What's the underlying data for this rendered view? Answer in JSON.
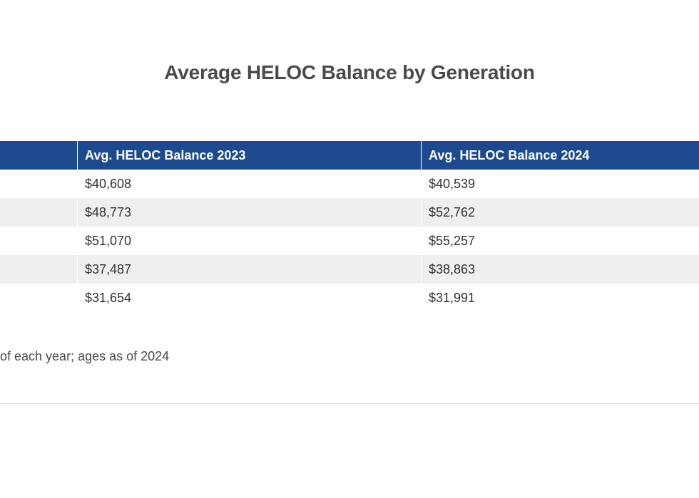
{
  "chart_data": {
    "type": "table",
    "title": "Average HELOC Balance by Generation",
    "columns": [
      "",
      "Avg. HELOC Balance 2023",
      "Avg. HELOC Balance 2024"
    ],
    "rows": [
      [
        "",
        "$40,608",
        "$40,539"
      ],
      [
        "",
        "$48,773",
        "$52,762"
      ],
      [
        "",
        "$51,070",
        "$55,257"
      ],
      [
        "",
        "$37,487",
        "$38,863"
      ],
      [
        "",
        "$31,654",
        "$31,991"
      ]
    ],
    "note": "of each year; ages as of 2024"
  },
  "colors": {
    "header_bg": "#1d4a8e",
    "header_text": "#ffffff",
    "stripe": "#efefef",
    "title_text": "#4a4a4a"
  }
}
